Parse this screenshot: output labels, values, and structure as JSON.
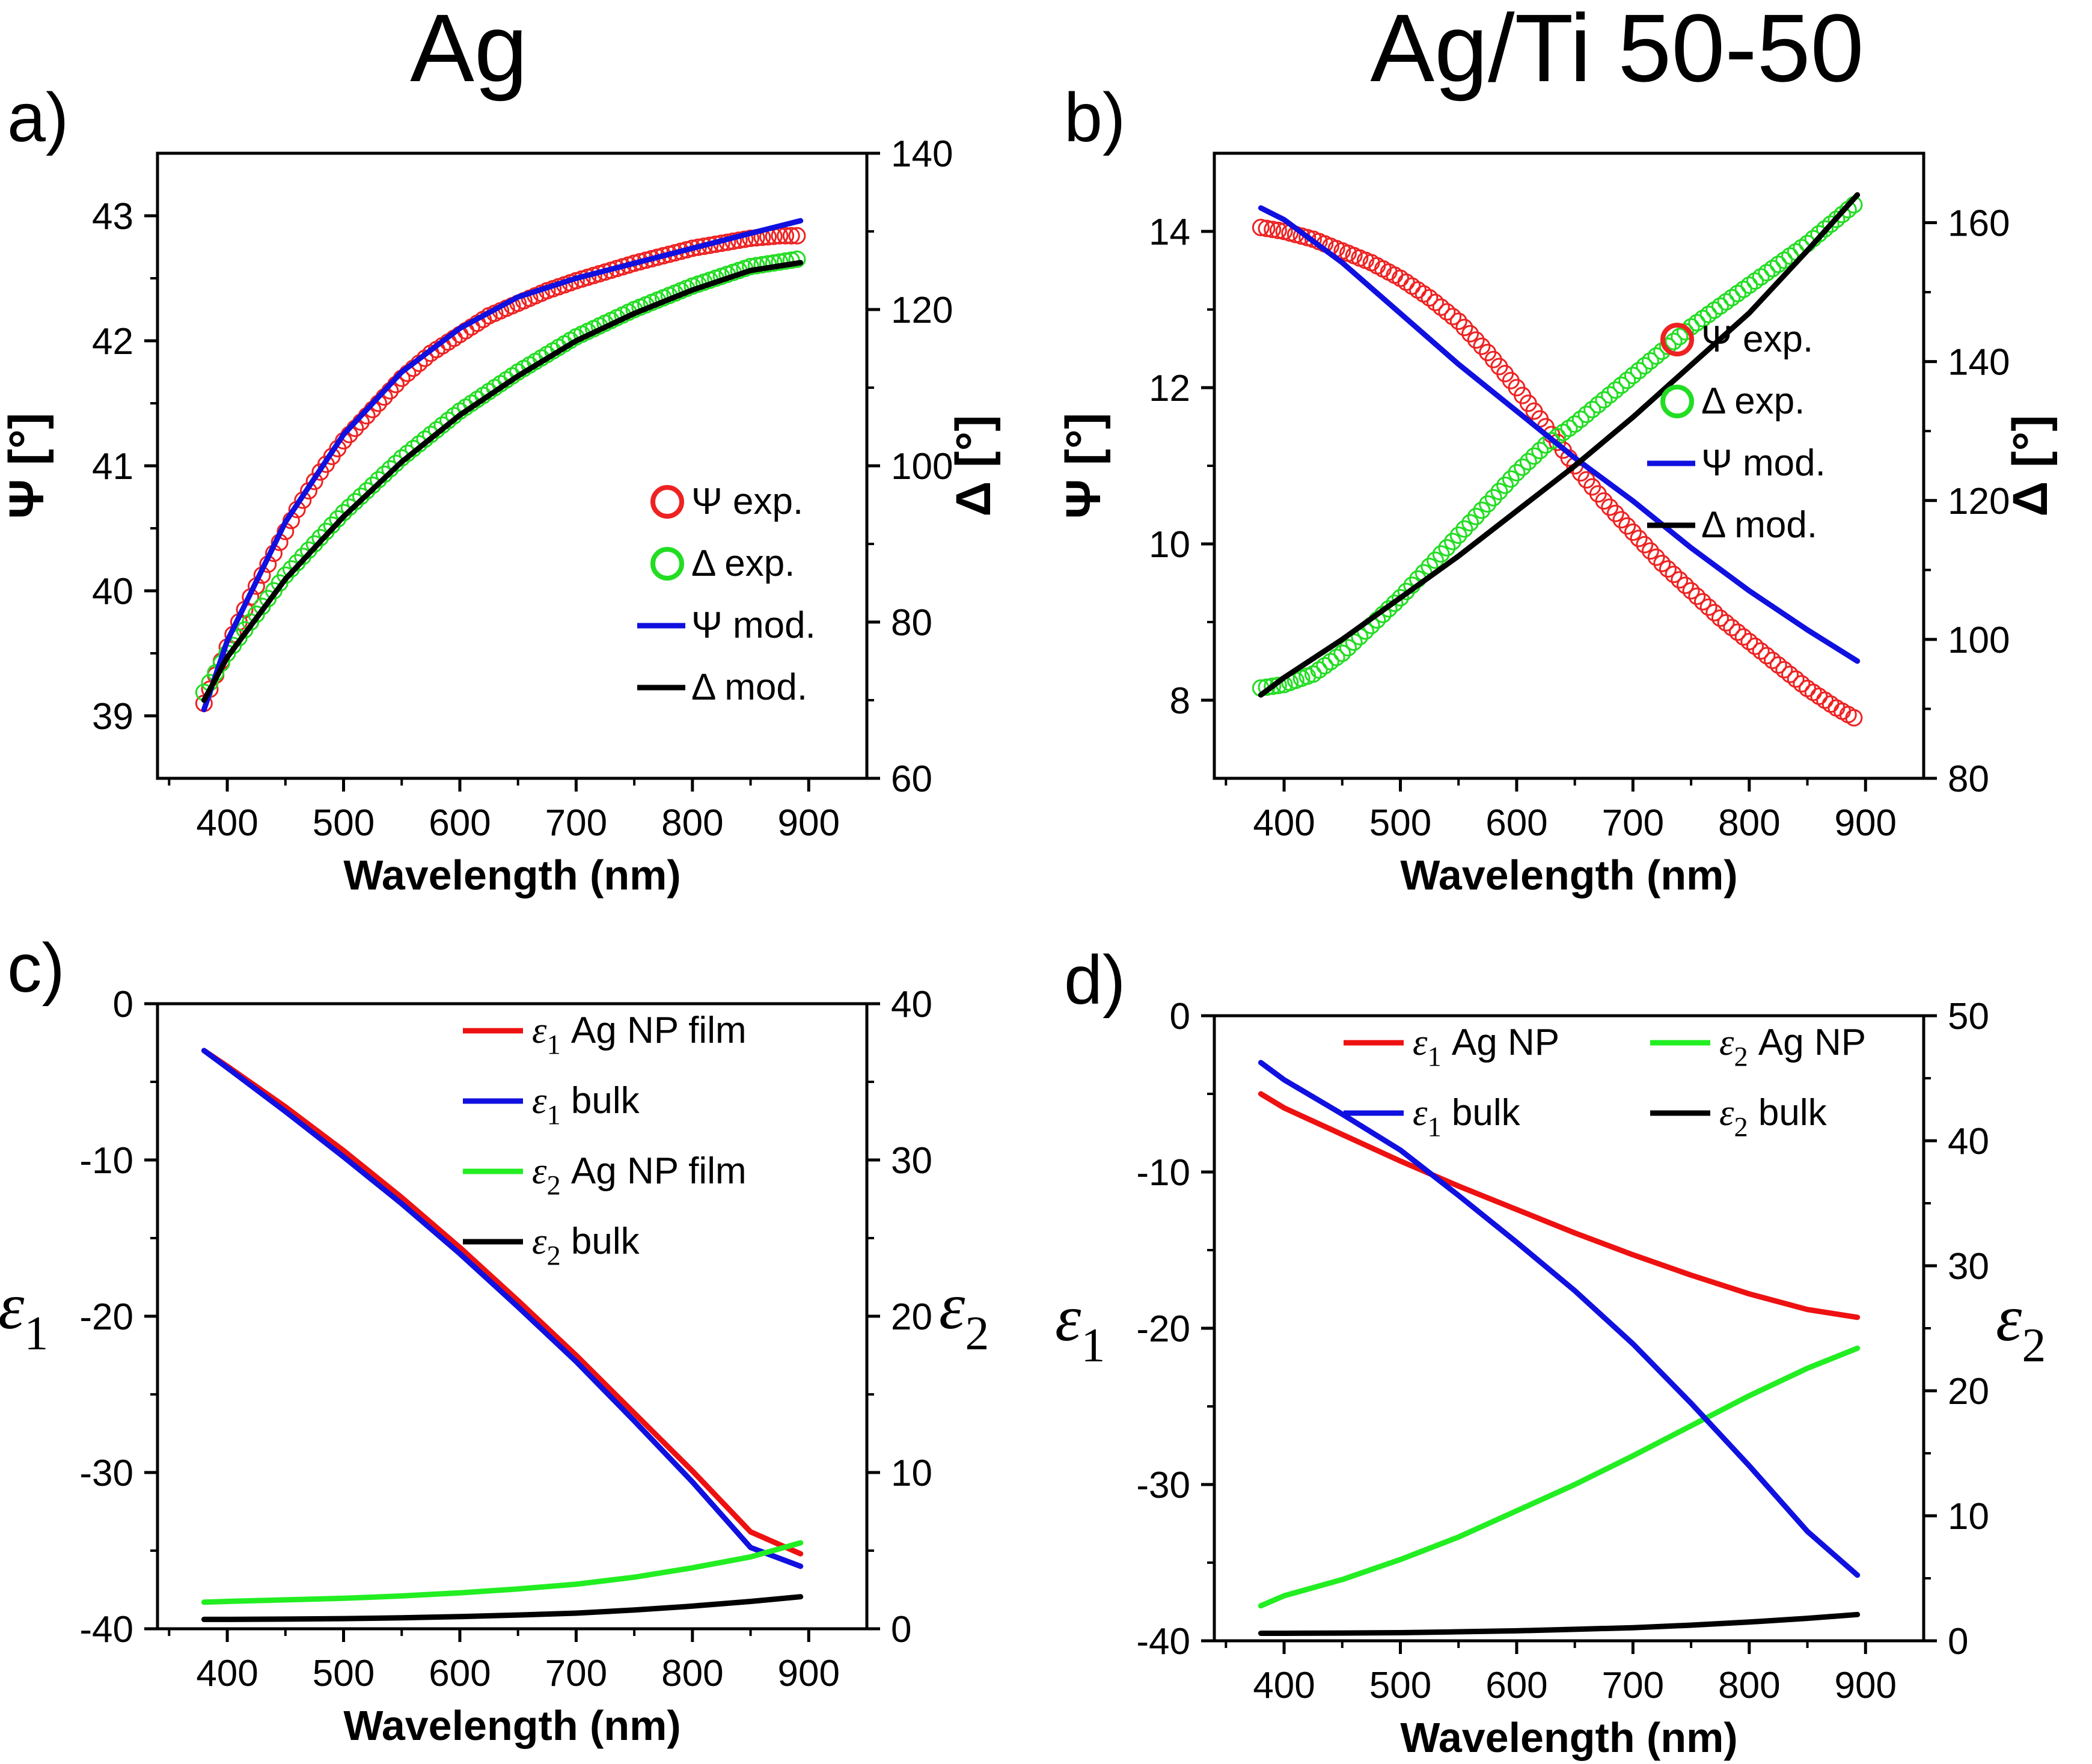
{
  "figure": {
    "title_left": "Ag",
    "title_right": "Ag/Ti 50-50"
  },
  "chart_data": [
    {
      "panel": "a)",
      "type": "line",
      "xlabel": "Wavelength (nm)",
      "ylabel": "Ψ [°]",
      "ylabel2": "Δ [°]",
      "xlim": [
        340,
        950
      ],
      "ylim": [
        38.5,
        43.5
      ],
      "y2lim": [
        60,
        140
      ],
      "xticks": [
        400,
        500,
        600,
        700,
        800,
        900
      ],
      "yticks": [
        39,
        40,
        41,
        42,
        43
      ],
      "y2ticks": [
        60,
        80,
        100,
        120,
        140
      ],
      "legend_position": "right-middle",
      "series": [
        {
          "name": "Ψ exp.",
          "style": "circles",
          "color": "#ee2222",
          "axis": "left",
          "x": [
            380,
            400,
            420,
            440,
            460,
            480,
            500,
            525,
            550,
            575,
            600,
            625,
            650,
            675,
            700,
            725,
            750,
            775,
            800,
            825,
            850,
            875,
            893
          ],
          "y": [
            39.1,
            39.55,
            39.95,
            40.3,
            40.65,
            40.95,
            41.2,
            41.45,
            41.7,
            41.9,
            42.05,
            42.2,
            42.3,
            42.4,
            42.48,
            42.55,
            42.62,
            42.68,
            42.74,
            42.78,
            42.82,
            42.84,
            42.84
          ]
        },
        {
          "name": "Δ exp.",
          "style": "circles",
          "color": "#22dd22",
          "axis": "right",
          "x": [
            380,
            400,
            450,
            500,
            550,
            600,
            650,
            700,
            750,
            800,
            850,
            893
          ],
          "y": [
            71,
            76,
            86,
            94,
            101,
            107,
            112,
            116.5,
            120,
            123,
            125.5,
            126.5
          ]
        },
        {
          "name": "Ψ mod.",
          "style": "line",
          "color": "#1010e0",
          "axis": "left",
          "x": [
            380,
            400,
            450,
            500,
            550,
            600,
            650,
            700,
            750,
            800,
            850,
            893
          ],
          "y": [
            39.05,
            39.6,
            40.55,
            41.25,
            41.75,
            42.1,
            42.35,
            42.5,
            42.62,
            42.74,
            42.86,
            42.96
          ]
        },
        {
          "name": "Δ mod.",
          "style": "line",
          "color": "#000000",
          "axis": "right",
          "x": [
            380,
            400,
            450,
            500,
            550,
            600,
            650,
            700,
            750,
            800,
            850,
            893
          ],
          "y": [
            70,
            75.5,
            85.5,
            93.5,
            100.5,
            106.5,
            111.5,
            116,
            119.5,
            122.5,
            125,
            126
          ]
        }
      ]
    },
    {
      "panel": "b)",
      "type": "line",
      "xlabel": "Wavelength (nm)",
      "ylabel": "Ψ [°]",
      "ylabel2": "Δ [°]",
      "xlim": [
        340,
        950
      ],
      "ylim": [
        7,
        15
      ],
      "y2lim": [
        80,
        170
      ],
      "xticks": [
        400,
        500,
        600,
        700,
        800,
        900
      ],
      "yticks": [
        8,
        10,
        12,
        14
      ],
      "y2ticks": [
        80,
        100,
        120,
        140,
        160
      ],
      "legend_position": "right-upper",
      "series": [
        {
          "name": "Ψ exp.",
          "style": "circles",
          "color": "#ee2222",
          "axis": "left",
          "x": [
            380,
            400,
            425,
            450,
            475,
            500,
            525,
            550,
            575,
            600,
            625,
            650,
            675,
            700,
            725,
            750,
            775,
            800,
            825,
            850,
            875,
            893
          ],
          "y": [
            14.05,
            14.0,
            13.9,
            13.75,
            13.6,
            13.4,
            13.15,
            12.85,
            12.45,
            12.0,
            11.5,
            11.0,
            10.55,
            10.15,
            9.75,
            9.4,
            9.05,
            8.75,
            8.45,
            8.15,
            7.9,
            7.75
          ]
        },
        {
          "name": "Δ exp.",
          "style": "circles",
          "color": "#22dd22",
          "axis": "right",
          "x": [
            380,
            400,
            425,
            450,
            475,
            500,
            525,
            550,
            575,
            600,
            625,
            650,
            700,
            750,
            800,
            850,
            893
          ],
          "y": [
            93,
            93.5,
            95,
            98,
            102,
            106,
            110.5,
            115,
            119.5,
            124,
            128,
            131,
            138,
            145,
            151,
            157,
            163
          ]
        },
        {
          "name": "Ψ mod.",
          "style": "line",
          "color": "#1010e0",
          "axis": "left",
          "x": [
            380,
            400,
            450,
            500,
            550,
            600,
            650,
            700,
            750,
            800,
            850,
            893
          ],
          "y": [
            14.3,
            14.15,
            13.6,
            12.95,
            12.3,
            11.7,
            11.1,
            10.55,
            9.95,
            9.4,
            8.9,
            8.5
          ]
        },
        {
          "name": "Δ mod.",
          "style": "line",
          "color": "#000000",
          "axis": "right",
          "x": [
            380,
            400,
            450,
            500,
            550,
            600,
            650,
            700,
            750,
            800,
            850,
            893
          ],
          "y": [
            92,
            94.5,
            100,
            106,
            112,
            118.5,
            125,
            132,
            139.5,
            147,
            156,
            164
          ]
        }
      ]
    },
    {
      "panel": "c)",
      "type": "line",
      "xlabel": "Wavelength (nm)",
      "ylabel": "ε1",
      "ylabel2": "ε2",
      "xlim": [
        340,
        950
      ],
      "ylim": [
        -40,
        0
      ],
      "y2lim": [
        0,
        40
      ],
      "xticks": [
        400,
        500,
        600,
        700,
        800,
        900
      ],
      "yticks": [
        0,
        -10,
        -20,
        -30,
        -40
      ],
      "y2ticks": [
        0,
        10,
        20,
        30,
        40
      ],
      "legend_position": "top-right",
      "series": [
        {
          "name": "ε1 Ag NP film",
          "color": "#ee1111",
          "axis": "left",
          "x": [
            380,
            400,
            450,
            500,
            550,
            600,
            650,
            700,
            750,
            800,
            850,
            893
          ],
          "y": [
            -3.0,
            -4.0,
            -6.6,
            -9.4,
            -12.4,
            -15.6,
            -19.0,
            -22.5,
            -26.2,
            -29.9,
            -33.8,
            -35.2
          ]
        },
        {
          "name": "ε1 bulk",
          "color": "#1010e0",
          "axis": "left",
          "x": [
            380,
            400,
            450,
            500,
            550,
            600,
            650,
            700,
            750,
            800,
            850,
            893
          ],
          "y": [
            -3.0,
            -4.1,
            -6.9,
            -9.8,
            -12.8,
            -16.0,
            -19.4,
            -22.9,
            -26.7,
            -30.6,
            -34.8,
            -36.0
          ]
        },
        {
          "name": "ε2 Ag NP film",
          "color": "#22ee22",
          "axis": "right",
          "x": [
            380,
            400,
            450,
            500,
            550,
            600,
            650,
            700,
            750,
            800,
            850,
            893
          ],
          "y": [
            1.7,
            1.75,
            1.85,
            1.95,
            2.1,
            2.3,
            2.55,
            2.85,
            3.3,
            3.9,
            4.6,
            5.5
          ]
        },
        {
          "name": "ε2 bulk",
          "color": "#000000",
          "axis": "right",
          "x": [
            380,
            400,
            450,
            500,
            550,
            600,
            650,
            700,
            750,
            800,
            850,
            893
          ],
          "y": [
            0.6,
            0.6,
            0.62,
            0.65,
            0.7,
            0.78,
            0.88,
            1.0,
            1.2,
            1.45,
            1.75,
            2.05
          ]
        }
      ]
    },
    {
      "panel": "d)",
      "type": "line",
      "xlabel": "Wavelength (nm)",
      "ylabel": "ε1",
      "ylabel2": "ε2",
      "xlim": [
        340,
        950
      ],
      "ylim": [
        -40,
        0
      ],
      "y2lim": [
        0,
        50
      ],
      "xticks": [
        400,
        500,
        600,
        700,
        800,
        900
      ],
      "yticks": [
        0,
        -10,
        -20,
        -30,
        -40
      ],
      "y2ticks": [
        0,
        10,
        20,
        30,
        40,
        50
      ],
      "legend_position": "top",
      "series": [
        {
          "name": "ε1 Ag NP",
          "color": "#ee1111",
          "axis": "left",
          "x": [
            380,
            400,
            450,
            500,
            550,
            600,
            650,
            700,
            750,
            800,
            850,
            893
          ],
          "y": [
            -5.0,
            -5.9,
            -7.6,
            -9.3,
            -10.9,
            -12.4,
            -13.9,
            -15.3,
            -16.6,
            -17.8,
            -18.8,
            -19.3
          ]
        },
        {
          "name": "ε2 Ag NP",
          "color": "#22ee22",
          "axis": "right",
          "x": [
            380,
            400,
            450,
            500,
            550,
            600,
            650,
            700,
            750,
            800,
            850,
            893
          ],
          "y": [
            2.8,
            3.6,
            4.9,
            6.5,
            8.3,
            10.4,
            12.5,
            14.8,
            17.2,
            19.6,
            21.8,
            23.4
          ]
        },
        {
          "name": "ε1 bulk",
          "color": "#1010e0",
          "axis": "left",
          "x": [
            380,
            400,
            450,
            500,
            550,
            600,
            650,
            700,
            750,
            800,
            850,
            893
          ],
          "y": [
            -3.0,
            -4.1,
            -6.3,
            -8.6,
            -11.5,
            -14.5,
            -17.6,
            -21.0,
            -24.8,
            -28.8,
            -33.0,
            -35.8
          ]
        },
        {
          "name": "ε2 bulk",
          "color": "#000000",
          "axis": "right",
          "x": [
            380,
            400,
            450,
            500,
            550,
            600,
            650,
            700,
            750,
            800,
            850,
            893
          ],
          "y": [
            0.6,
            0.6,
            0.62,
            0.65,
            0.72,
            0.8,
            0.92,
            1.05,
            1.25,
            1.5,
            1.8,
            2.1
          ]
        }
      ]
    }
  ]
}
